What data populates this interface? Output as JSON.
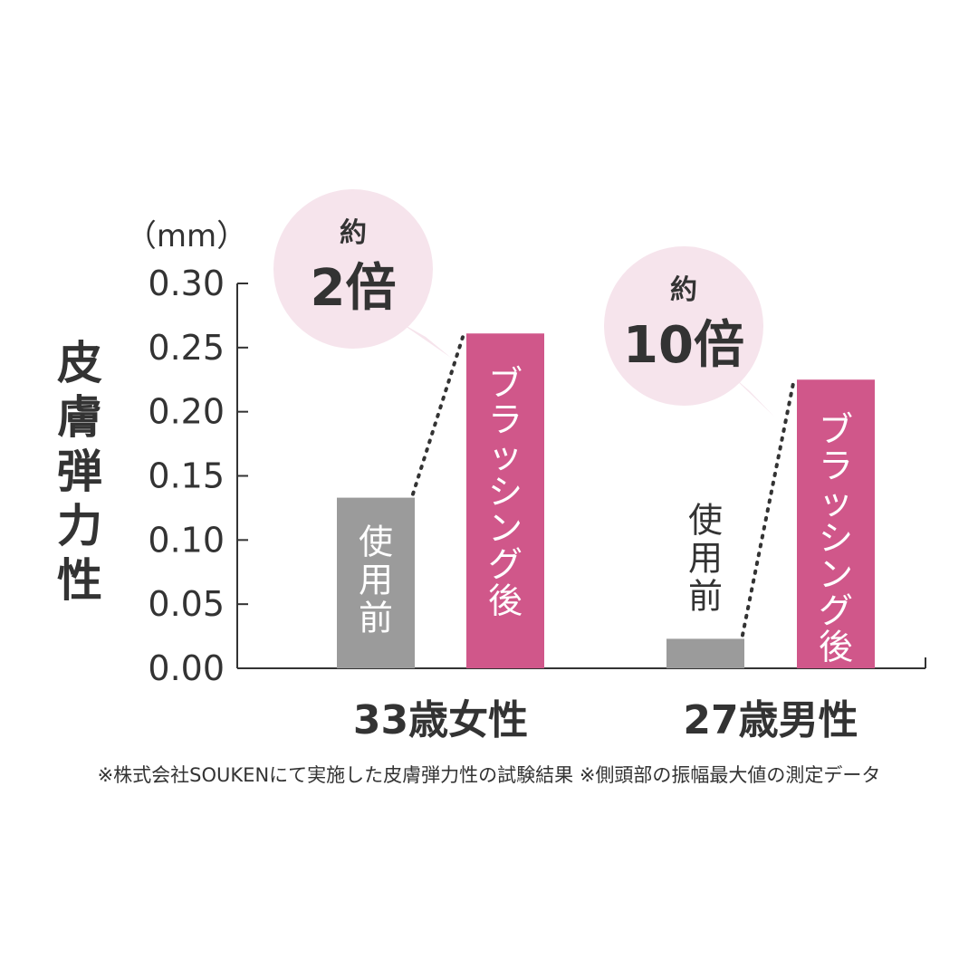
{
  "chart_data": {
    "type": "bar",
    "ylabel": "皮膚弾力性",
    "unit": "（mm）",
    "ylim": [
      0,
      0.3
    ],
    "yticks": [
      "0.00",
      "0.05",
      "0.10",
      "0.15",
      "0.20",
      "0.25",
      "0.30"
    ],
    "grid": false,
    "groups": [
      {
        "label": "33歳女性",
        "bars": [
          {
            "name": "使用前",
            "value": 0.133
          },
          {
            "name": "ブラッシング後",
            "value": 0.261
          }
        ],
        "callout": {
          "prefix": "約",
          "value": "2倍"
        }
      },
      {
        "label": "27歳男性",
        "bars": [
          {
            "name": "使用前",
            "value": 0.023
          },
          {
            "name": "ブラッシング後",
            "value": 0.225
          }
        ],
        "callout": {
          "prefix": "約",
          "value": "10倍"
        }
      }
    ],
    "colors": {
      "before": "#9b9b9b",
      "after": "#d0578a",
      "bubble": "#f6e4ec",
      "axis": "#333333"
    }
  },
  "footnote": "※株式会社SOUKENにて実施した皮膚弾力性の試験結果 ※側頭部の振幅最大値の測定データ"
}
